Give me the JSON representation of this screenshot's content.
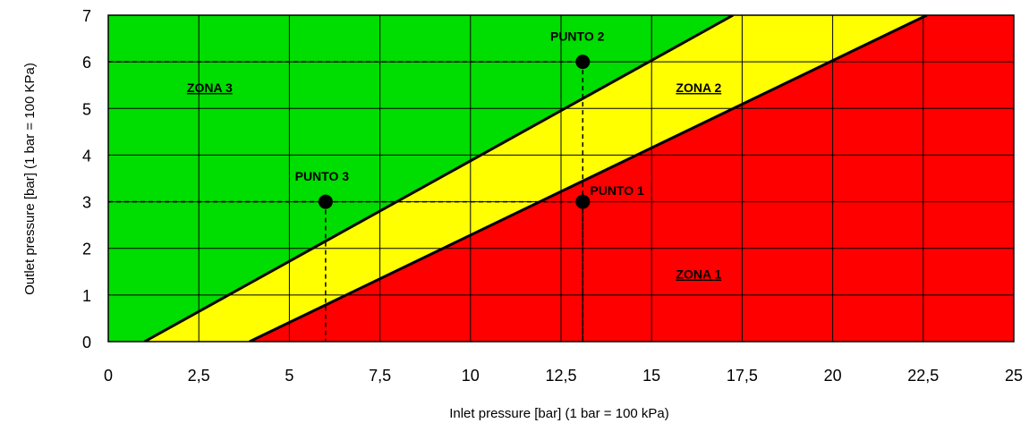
{
  "chart_data": {
    "type": "scatter",
    "xlabel": "Inlet pressure [bar] (1 bar = 100 kPa)",
    "ylabel": "Outlet pressure [bar] (1 bar = 100 KPa)",
    "xlim": [
      0,
      25
    ],
    "ylim": [
      0,
      7
    ],
    "x_ticks": [
      0,
      2.5,
      5,
      7.5,
      10,
      12.5,
      15,
      17.5,
      20,
      22.5,
      25
    ],
    "x_tick_labels": [
      "0",
      "2,5",
      "5",
      "7,5",
      "10",
      "12,5",
      "15",
      "17,5",
      "20",
      "22,5",
      "25"
    ],
    "y_ticks": [
      0,
      1,
      2,
      3,
      4,
      5,
      6,
      7
    ],
    "y_tick_labels": [
      "0",
      "1",
      "2",
      "3",
      "4",
      "5",
      "6",
      "7"
    ],
    "grid": true,
    "boundaries": [
      {
        "x": [
          1,
          17.25
        ],
        "y": [
          0,
          7
        ]
      },
      {
        "x": [
          3.9,
          22.6
        ],
        "y": [
          0,
          7
        ]
      }
    ],
    "zones": [
      {
        "label": "ZONA 1",
        "color": "#ff0000",
        "label_x": 16.3,
        "label_y": 1.35
      },
      {
        "label": "ZONA 2",
        "color": "#ffff00",
        "label_x": 16.3,
        "label_y": 5.35
      },
      {
        "label": "ZONA 3",
        "color": "#00dd00",
        "label_x": 2.8,
        "label_y": 5.35
      }
    ],
    "points": [
      {
        "label": "PUNTO 1",
        "x": 13.1,
        "y": 3,
        "label_x": 13.3,
        "label_y": 3.15,
        "label_anchor": "start"
      },
      {
        "label": "PUNTO 2",
        "x": 13.1,
        "y": 6,
        "label_x": 12.95,
        "label_y": 6.45,
        "label_anchor": "middle"
      },
      {
        "label": "PUNTO 3",
        "x": 6,
        "y": 3,
        "label_x": 5.9,
        "label_y": 3.45,
        "label_anchor": "middle"
      }
    ]
  }
}
